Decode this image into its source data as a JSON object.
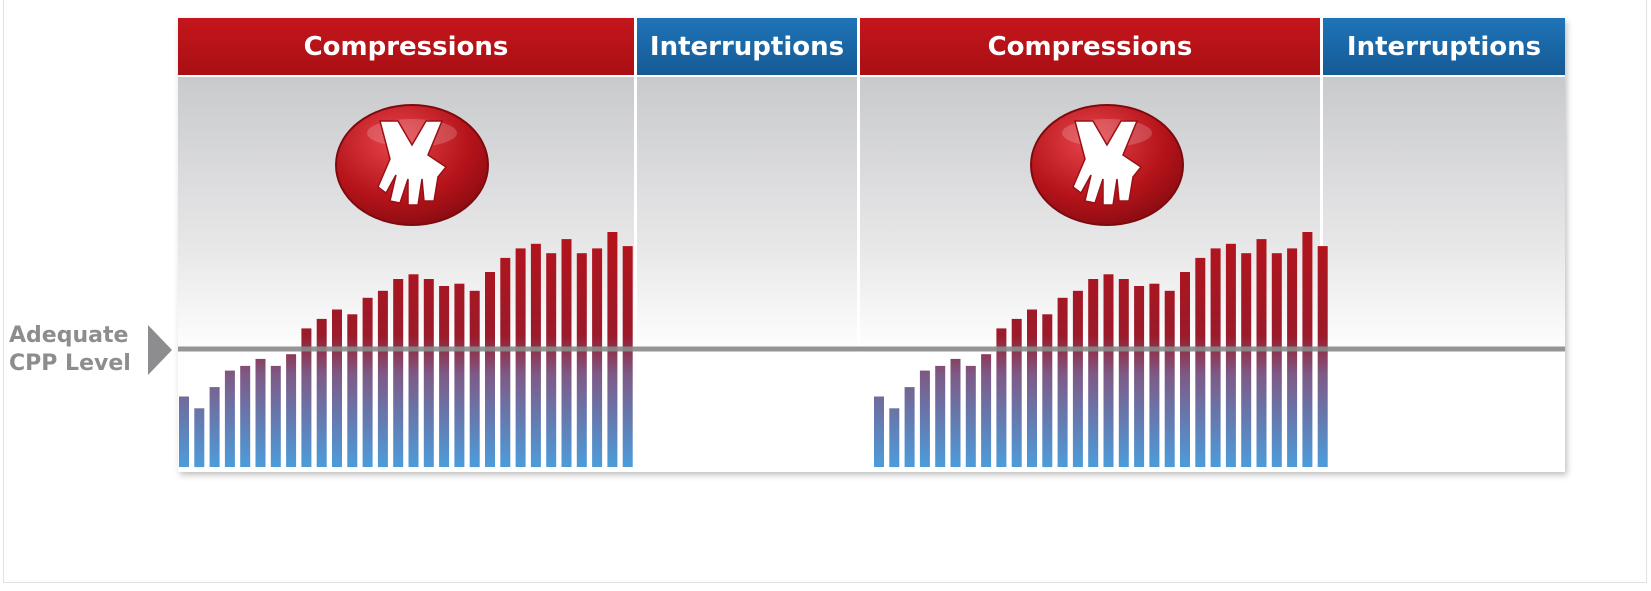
{
  "phases": [
    {
      "label": "Compressions",
      "kind": "compressions",
      "color": "#b5131a"
    },
    {
      "label": "Interruptions",
      "kind": "interruptions",
      "color": "#1a66a8"
    },
    {
      "label": "Compressions",
      "kind": "compressions",
      "color": "#b5131a"
    },
    {
      "label": "Interruptions",
      "kind": "interruptions",
      "color": "#1a66a8"
    }
  ],
  "threshold_label": {
    "line1": "Adequate",
    "line2": "CPP Level"
  },
  "icons": {
    "compressions_icon": "hands-cpr-icon"
  },
  "colors": {
    "bar_top": "#b5131a",
    "bar_bottom": "#4e9ad8",
    "threshold_line": "#8a8a8a",
    "label": "#8d8d8f"
  },
  "chart_data": {
    "type": "bar",
    "title": "",
    "xlabel": "",
    "ylabel": "",
    "ylim": [
      0,
      1
    ],
    "threshold": 0.5,
    "series": [
      {
        "phase": "Compressions 1",
        "values": [
          0.3,
          0.25,
          0.34,
          0.41,
          0.43,
          0.46,
          0.43,
          0.48,
          0.59,
          0.63,
          0.67,
          0.65,
          0.72,
          0.75,
          0.8,
          0.82,
          0.8,
          0.77,
          0.78,
          0.75,
          0.83,
          0.89,
          0.93,
          0.95,
          0.91,
          0.97,
          0.91,
          0.93,
          1.0,
          0.94
        ]
      },
      {
        "phase": "Compressions 2",
        "values": [
          0.3,
          0.25,
          0.34,
          0.41,
          0.43,
          0.46,
          0.43,
          0.48,
          0.59,
          0.63,
          0.67,
          0.65,
          0.72,
          0.75,
          0.8,
          0.82,
          0.8,
          0.77,
          0.78,
          0.75,
          0.83,
          0.89,
          0.93,
          0.95,
          0.91,
          0.97,
          0.91,
          0.93,
          1.0,
          0.94
        ]
      }
    ]
  }
}
